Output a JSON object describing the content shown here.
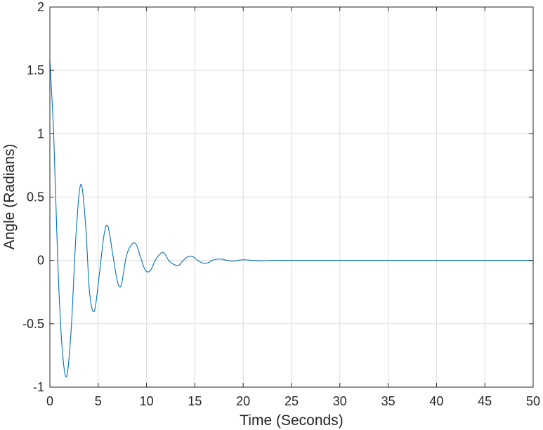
{
  "chart_data": {
    "type": "line",
    "title": "",
    "xlabel": "Time (Seconds)",
    "ylabel": "Angle (Radians)",
    "xlim": [
      0,
      50
    ],
    "ylim": [
      -1,
      2
    ],
    "xticks": [
      0,
      5,
      10,
      15,
      20,
      25,
      30,
      35,
      40,
      45,
      50
    ],
    "yticks": [
      -1,
      -0.5,
      0,
      0.5,
      1,
      1.5,
      2
    ],
    "xtick_labels": [
      "0",
      "5",
      "10",
      "15",
      "20",
      "25",
      "30",
      "35",
      "40",
      "45",
      "50"
    ],
    "ytick_labels": [
      "-1",
      "-0.5",
      "0",
      "0.5",
      "1",
      "1.5",
      "2"
    ],
    "grid": true,
    "colors": {
      "line": "#0072BD",
      "grid": "#dcdcdc",
      "axis": "#262626"
    },
    "series": [
      {
        "x": [
          0,
          0.4,
          0.8,
          1.2,
          1.7,
          2.2,
          2.7,
          3.2,
          3.7,
          4.1,
          4.6,
          5.1,
          5.6,
          6.0,
          6.5,
          7.0,
          7.4,
          7.9,
          8.4,
          8.9,
          9.4,
          9.9,
          10.4,
          10.9,
          11.4,
          11.8,
          12.3,
          12.8,
          13.3,
          13.8,
          14.3,
          14.8,
          15.3,
          15.8,
          16.3,
          16.8,
          17.3,
          17.8,
          18.3,
          18.8,
          19.5,
          20.0,
          21.0,
          22.0,
          23.0,
          25.0,
          30.0,
          35.0,
          40.0,
          45.0,
          50.0
        ],
        "y": [
          1.58,
          0.98,
          0.03,
          -0.62,
          -0.92,
          -0.55,
          0.2,
          0.6,
          0.28,
          -0.25,
          -0.4,
          -0.12,
          0.2,
          0.27,
          0.05,
          -0.17,
          -0.19,
          0.03,
          0.12,
          0.13,
          0.02,
          -0.08,
          -0.08,
          0.0,
          0.05,
          0.06,
          0.0,
          -0.03,
          -0.04,
          0.0,
          0.03,
          0.03,
          0.0,
          -0.02,
          -0.02,
          0.0,
          0.01,
          0.01,
          0.0,
          -0.005,
          0.0,
          0.005,
          0.0,
          -0.003,
          0.0,
          0.0,
          0.0,
          0.0,
          0.0,
          0.0,
          0.0
        ]
      }
    ]
  }
}
